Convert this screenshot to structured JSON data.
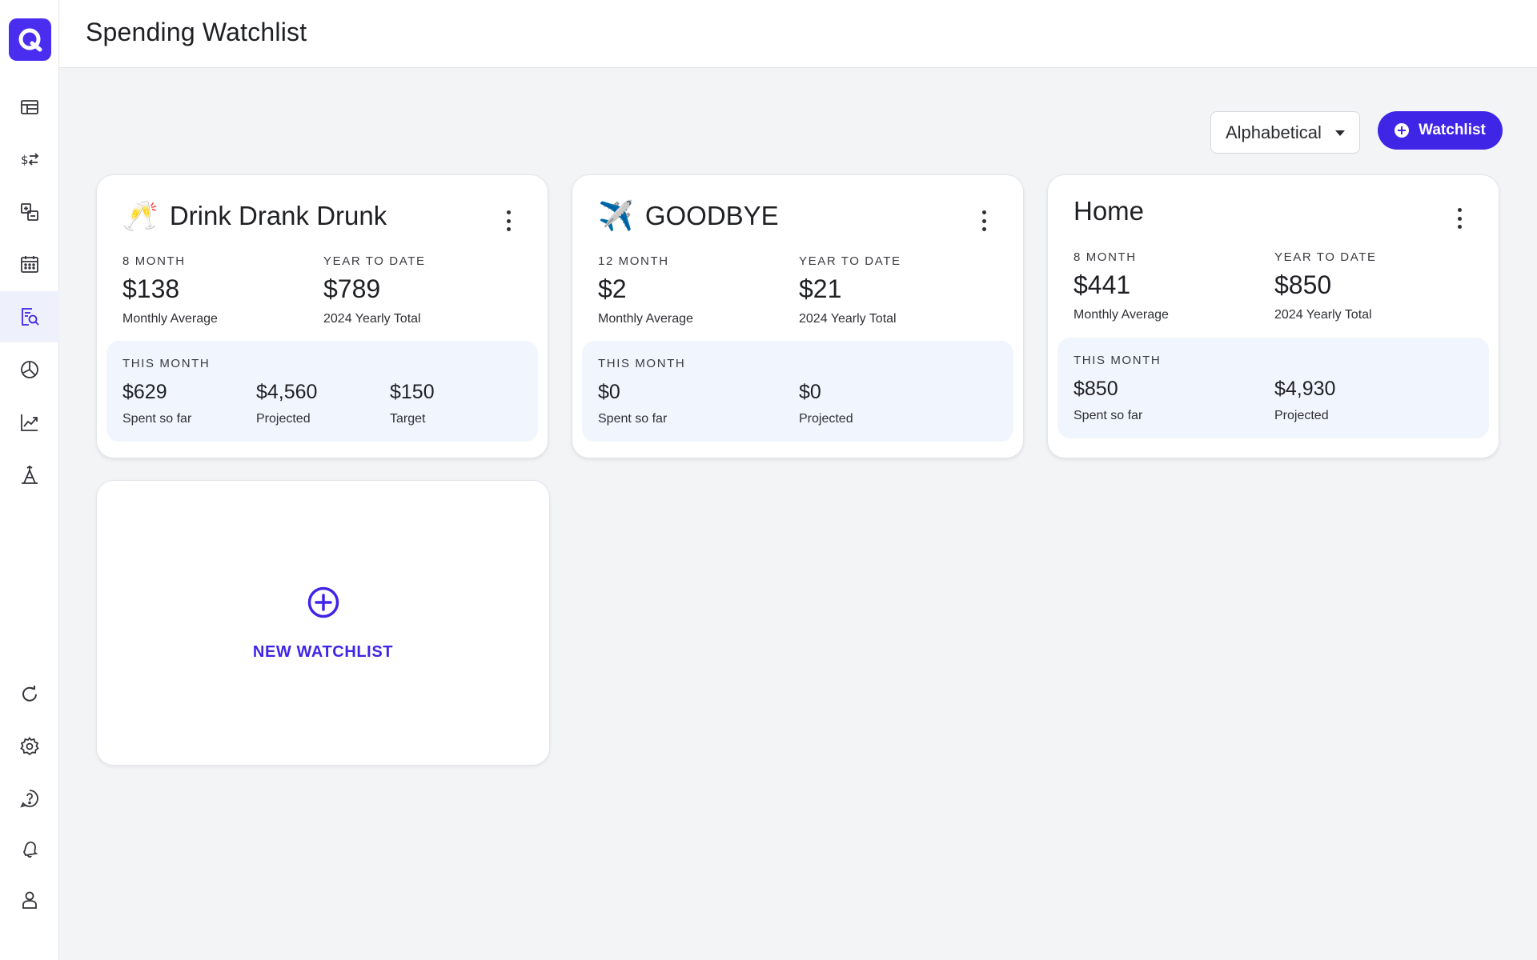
{
  "header": {
    "title": "Spending Watchlist"
  },
  "controls": {
    "sort_label": "Alphabetical",
    "add_button_label": "Watchlist"
  },
  "colors": {
    "accent": "#3f25e6",
    "logo_bg": "#4a2ef0",
    "panel_bg": "#f1f5fd"
  },
  "sidebar": {
    "top_icons": [
      "dashboard-icon",
      "transactions-icon",
      "accounts-icon",
      "calendar-icon",
      "watchlist-icon",
      "budget-icon",
      "trends-icon",
      "forecast-icon"
    ],
    "active": "watchlist-icon",
    "bottom_icons": [
      "refresh-icon",
      "settings-icon",
      "help-icon",
      "notifications-icon",
      "profile-icon"
    ]
  },
  "cards": [
    {
      "emoji": "🥂",
      "title": "Drink Drank Drunk",
      "avg_period": "8 MONTH",
      "avg_value": "$138",
      "avg_caption": "Monthly Average",
      "ytd_label": "YEAR TO DATE",
      "ytd_value": "$789",
      "ytd_caption": "2024 Yearly Total",
      "this_month_label": "THIS MONTH",
      "spent_value": "$629",
      "spent_caption": "Spent so far",
      "projected_value": "$4,560",
      "projected_caption": "Projected",
      "target_value": "$150",
      "target_caption": "Target"
    },
    {
      "emoji": "✈️",
      "title": "GOODBYE",
      "avg_period": "12 MONTH",
      "avg_value": "$2",
      "avg_caption": "Monthly Average",
      "ytd_label": "YEAR TO DATE",
      "ytd_value": "$21",
      "ytd_caption": "2024 Yearly Total",
      "this_month_label": "THIS MONTH",
      "spent_value": "$0",
      "spent_caption": "Spent so far",
      "projected_value": "$0",
      "projected_caption": "Projected"
    },
    {
      "title": "Home",
      "avg_period": "8 MONTH",
      "avg_value": "$441",
      "avg_caption": "Monthly Average",
      "ytd_label": "YEAR TO DATE",
      "ytd_value": "$850",
      "ytd_caption": "2024 Yearly Total",
      "this_month_label": "THIS MONTH",
      "spent_value": "$850",
      "spent_caption": "Spent so far",
      "projected_value": "$4,930",
      "projected_caption": "Projected"
    }
  ],
  "new_watchlist": {
    "label": "NEW WATCHLIST"
  }
}
